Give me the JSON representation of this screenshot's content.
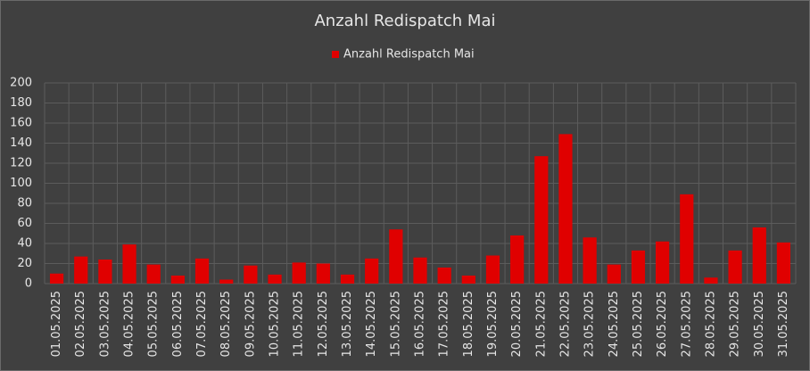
{
  "chart_data": {
    "type": "bar",
    "title": "Anzahl Redispatch Mai",
    "categories": [
      "01.05.2025",
      "02.05.2025",
      "03.05.2025",
      "04.05.2025",
      "05.05.2025",
      "06.05.2025",
      "07.05.2025",
      "08.05.2025",
      "09.05.2025",
      "10.05.2025",
      "11.05.2025",
      "12.05.2025",
      "13.05.2025",
      "14.05.2025",
      "15.05.2025",
      "16.05.2025",
      "17.05.2025",
      "18.05.2025",
      "19.05.2025",
      "20.05.2025",
      "21.05.2025",
      "22.05.2025",
      "23.05.2025",
      "24.05.2025",
      "25.05.2025",
      "26.05.2025",
      "27.05.2025",
      "28.05.2025",
      "29.05.2025",
      "30.05.2025",
      "31.05.2025"
    ],
    "series": [
      {
        "name": "Anzahl Redispatch Mai",
        "color": "#e00000",
        "values": [
          10,
          27,
          24,
          39,
          19,
          8,
          25,
          4,
          18,
          9,
          21,
          20,
          9,
          25,
          54,
          26,
          16,
          8,
          28,
          48,
          127,
          149,
          46,
          19,
          33,
          42,
          89,
          6,
          33,
          56,
          41
        ]
      }
    ],
    "ylim": [
      0,
      200
    ],
    "yticks": [
      0,
      20,
      40,
      60,
      80,
      100,
      120,
      140,
      160,
      180,
      200
    ],
    "grid": true,
    "legend": "top"
  }
}
